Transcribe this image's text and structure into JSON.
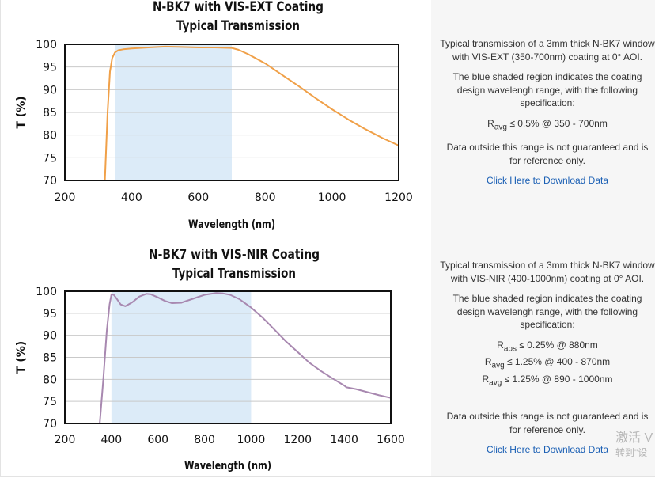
{
  "chart_data": [
    {
      "type": "line",
      "title": [
        "N-BK7 with VIS-EXT Coating",
        "Typical Transmission"
      ],
      "xlabel": "Wavelength (nm)",
      "ylabel": "T (%)",
      "xlim": [
        200,
        1200
      ],
      "ylim": [
        70,
        100
      ],
      "xticks": [
        200,
        400,
        600,
        800,
        1000,
        1200
      ],
      "yticks": [
        70,
        75,
        80,
        85,
        90,
        95,
        100
      ],
      "grid": true,
      "shaded_region": [
        350,
        700
      ],
      "series": [
        {
          "color": "#f0a048",
          "x": [
            320,
            328,
            335,
            342,
            350,
            360,
            375,
            400,
            450,
            500,
            550,
            600,
            650,
            700,
            720,
            750,
            800,
            850,
            900,
            950,
            1000,
            1050,
            1100,
            1150,
            1200
          ],
          "y": [
            70,
            85,
            94,
            97,
            98.2,
            98.7,
            98.9,
            99.1,
            99.3,
            99.5,
            99.4,
            99.3,
            99.3,
            99.2,
            98.8,
            97.8,
            95.8,
            93.3,
            90.8,
            88.2,
            85.7,
            83.4,
            81.3,
            79.4,
            77.7
          ]
        }
      ]
    },
    {
      "type": "line",
      "title": [
        "N-BK7 with VIS-NIR Coating",
        "Typical Transmission"
      ],
      "xlabel": "Wavelength (nm)",
      "ylabel": "T (%)",
      "xlim": [
        200,
        1600
      ],
      "ylim": [
        70,
        100
      ],
      "xticks": [
        200,
        400,
        600,
        800,
        1000,
        1200,
        1400,
        1600
      ],
      "yticks": [
        70,
        75,
        80,
        85,
        90,
        95,
        100
      ],
      "grid": true,
      "shaded_region": [
        400,
        1000
      ],
      "series": [
        {
          "color": "#a888b0",
          "x": [
            350,
            365,
            380,
            392,
            400,
            410,
            420,
            440,
            460,
            490,
            520,
            550,
            570,
            600,
            630,
            660,
            700,
            750,
            800,
            850,
            880,
            910,
            950,
            1000,
            1050,
            1100,
            1150,
            1200,
            1250,
            1300,
            1350,
            1400,
            1410,
            1450,
            1500,
            1550,
            1600
          ],
          "y": [
            70,
            80,
            91,
            97,
            99.3,
            99.2,
            98.5,
            97,
            96.6,
            97.5,
            98.8,
            99.4,
            99.3,
            98.6,
            97.8,
            97.3,
            97.4,
            98.3,
            99.2,
            99.6,
            99.5,
            99.2,
            98.2,
            96.3,
            94,
            91.3,
            88.6,
            86.2,
            83.8,
            81.9,
            80.2,
            78.6,
            78.2,
            77.8,
            77.1,
            76.4,
            75.8
          ]
        }
      ]
    }
  ],
  "descriptions": [
    {
      "intro": "Typical transmission of a 3mm thick N-BK7 window with VIS-EXT (350-700nm) coating at 0° AOI.",
      "shaded_note": "The blue shaded region indicates the coating design wavelengh range, with the following specification:",
      "specs": [
        {
          "symbol": "R",
          "sub": "avg",
          "text": "≤ 0.5% @ 350 - 700nm"
        }
      ],
      "disclaimer": "Data outside this range is not guaranteed and is for reference only.",
      "link": "Click Here to Download Data"
    },
    {
      "intro": "Typical transmission of a 3mm thick N-BK7 window with VIS-NIR (400-1000nm) coating at 0° AOI.",
      "shaded_note": "The blue shaded region indicates the coating design wavelengh range, with the following specification:",
      "specs": [
        {
          "symbol": "R",
          "sub": "abs",
          "text": "≤ 0.25% @ 880nm"
        },
        {
          "symbol": "R",
          "sub": "avg",
          "text": "≤ 1.25% @ 400 - 870nm"
        },
        {
          "symbol": "R",
          "sub": "avg",
          "text": "≤ 1.25% @ 890 - 1000nm"
        }
      ],
      "disclaimer": "Data outside this range is not guaranteed and is for reference only.",
      "link": "Click Here to Download Data"
    }
  ],
  "watermark": {
    "line1": "激活 V",
    "line2": "转到\"设"
  }
}
